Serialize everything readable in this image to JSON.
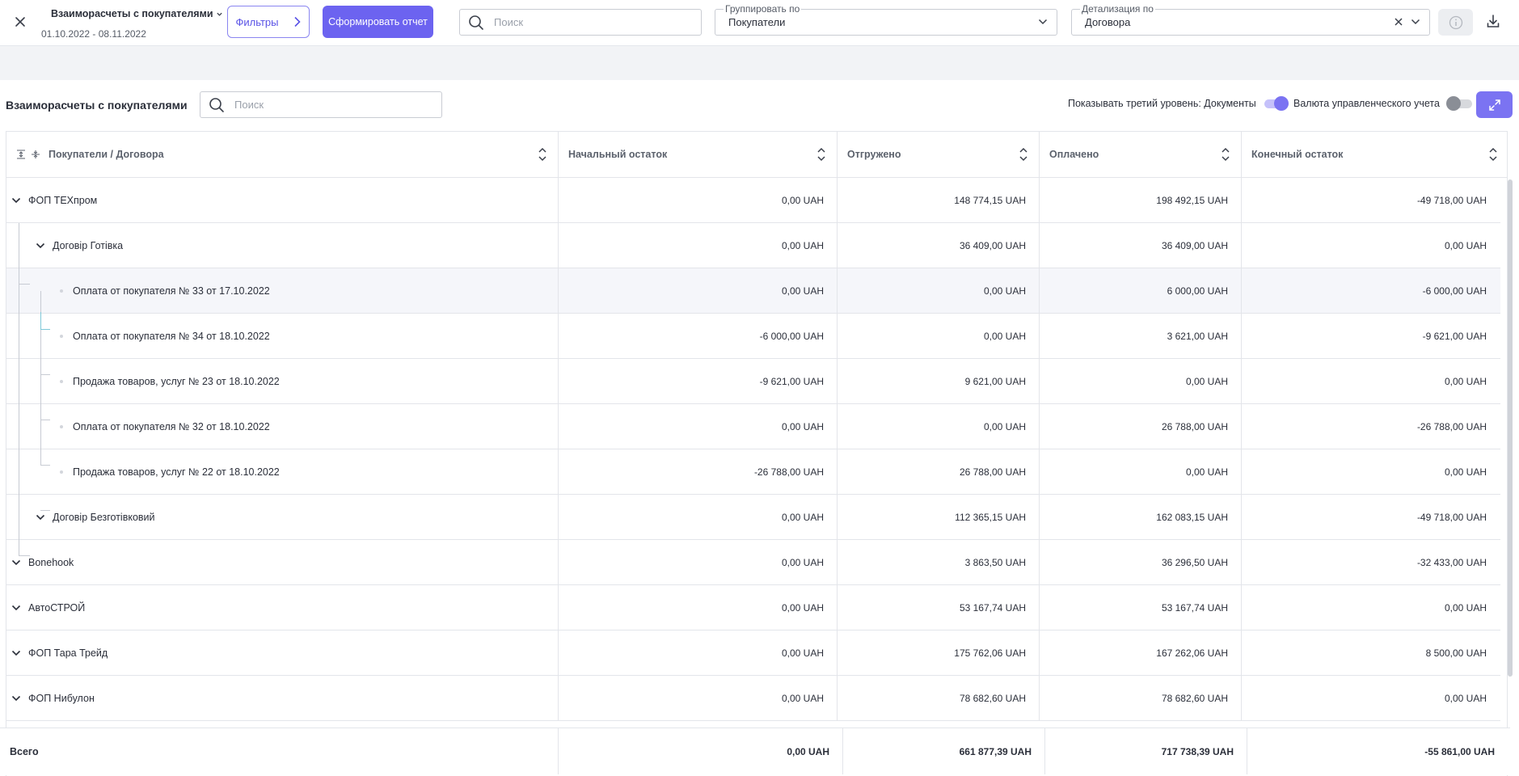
{
  "header": {
    "report_title": "Взаиморасчеты с покупателями",
    "date_range": "01.10.2022 - 08.11.2022",
    "filters_label": "Фильтры",
    "generate_label": "Сформировать отчет",
    "search_placeholder": "Поиск",
    "group_by_legend": "Группировать по",
    "group_by_value": "Покупатели",
    "detail_legend": "Детализация по",
    "detail_value": "Договора"
  },
  "panel": {
    "title": "Взаиморасчеты с покупателями",
    "search_placeholder": "Поиск",
    "third_level_label": "Показывать третий уровень: Документы",
    "third_level_on": true,
    "currency_label": "Валюта управленческого учета",
    "currency_on": false
  },
  "columns": [
    "Покупатели / Договора",
    "Начальный остаток",
    "Отгружено",
    "Оплачено",
    "Конечный остаток"
  ],
  "rows": [
    {
      "level": 1,
      "name": "ФОП ТЕХпром",
      "start": "0,00 UAH",
      "shipped": "148 774,15 UAH",
      "paid": "198 492,15 UAH",
      "end": "-49 718,00 UAH"
    },
    {
      "level": 2,
      "name": "Договір Готівка",
      "start": "0,00 UAH",
      "shipped": "36 409,00 UAH",
      "paid": "36 409,00 UAH",
      "end": "0,00 UAH"
    },
    {
      "level": 3,
      "name": "Оплата от покупателя № 33 от 17.10.2022",
      "start": "0,00 UAH",
      "shipped": "0,00 UAH",
      "paid": "6 000,00 UAH",
      "end": "-6 000,00 UAH",
      "selected": true
    },
    {
      "level": 3,
      "name": "Оплата от покупателя № 34 от 18.10.2022",
      "start": "-6 000,00 UAH",
      "shipped": "0,00 UAH",
      "paid": "3 621,00 UAH",
      "end": "-9 621,00 UAH"
    },
    {
      "level": 3,
      "name": "Продажа товаров, услуг № 23 от 18.10.2022",
      "start": "-9 621,00 UAH",
      "shipped": "9 621,00 UAH",
      "paid": "0,00 UAH",
      "end": "0,00 UAH"
    },
    {
      "level": 3,
      "name": "Оплата от покупателя № 32 от 18.10.2022",
      "start": "0,00 UAH",
      "shipped": "0,00 UAH",
      "paid": "26 788,00 UAH",
      "end": "-26 788,00 UAH"
    },
    {
      "level": 3,
      "name": "Продажа товаров, услуг № 22 от 18.10.2022",
      "start": "-26 788,00 UAH",
      "shipped": "26 788,00 UAH",
      "paid": "0,00 UAH",
      "end": "0,00 UAH"
    },
    {
      "level": 2,
      "name": "Договір Безготівковий",
      "start": "0,00 UAH",
      "shipped": "112 365,15 UAH",
      "paid": "162 083,15 UAH",
      "end": "-49 718,00 UAH"
    },
    {
      "level": 1,
      "name": "Bonehook",
      "start": "0,00 UAH",
      "shipped": "3 863,50 UAH",
      "paid": "36 296,50 UAH",
      "end": "-32 433,00 UAH"
    },
    {
      "level": 1,
      "name": "АвтоСТРОЙ",
      "start": "0,00 UAH",
      "shipped": "53 167,74 UAH",
      "paid": "53 167,74 UAH",
      "end": "0,00 UAH"
    },
    {
      "level": 1,
      "name": "ФОП Тара Трейд",
      "start": "0,00 UAH",
      "shipped": "175 762,06 UAH",
      "paid": "167 262,06 UAH",
      "end": "8 500,00 UAH"
    },
    {
      "level": 1,
      "name": "ФОП Нибулон",
      "start": "0,00 UAH",
      "shipped": "78 682,60 UAH",
      "paid": "78 682,60 UAH",
      "end": "0,00 UAH"
    }
  ],
  "totals": {
    "label": "Всего",
    "start": "0,00 UAH",
    "shipped": "661 877,39 UAH",
    "paid": "717 738,39 UAH",
    "end": "-55 861,00 UAH"
  },
  "colors": {
    "accent": "#6c63f0",
    "accent_light": "#c5c1fa",
    "selected_row": "#f5f6fa"
  }
}
